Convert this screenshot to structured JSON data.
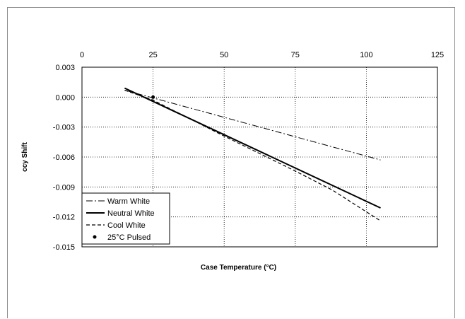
{
  "chart_data": {
    "type": "line",
    "xlabel": "Case Temperature (°C)",
    "ylabel": "ccy Shift",
    "xlim": [
      0,
      125
    ],
    "ylim": [
      -0.015,
      0.003
    ],
    "x_ticks": [
      {
        "value": 0,
        "label": "0"
      },
      {
        "value": 25,
        "label": "25"
      },
      {
        "value": 50,
        "label": "50"
      },
      {
        "value": 75,
        "label": "75"
      },
      {
        "value": 100,
        "label": "100"
      },
      {
        "value": 125,
        "label": "125"
      }
    ],
    "y_ticks": [
      {
        "value": 0.003,
        "label": "0.003"
      },
      {
        "value": 0.0,
        "label": "0.000"
      },
      {
        "value": -0.003,
        "label": "-0.003"
      },
      {
        "value": -0.006,
        "label": "-0.006"
      },
      {
        "value": -0.009,
        "label": "-0.009"
      },
      {
        "value": -0.012,
        "label": "-0.012"
      },
      {
        "value": -0.015,
        "label": "-0.015"
      }
    ],
    "x_axis_position": "top",
    "grid": true,
    "legend_position": "bottom-left",
    "series": [
      {
        "name": "Warm White",
        "style": "dash-dot",
        "color": "#000000",
        "x": [
          15,
          105
        ],
        "y": [
          0.0007,
          -0.0063
        ]
      },
      {
        "name": "Neutral White",
        "style": "solid",
        "color": "#000000",
        "x": [
          15,
          105
        ],
        "y": [
          0.0009,
          -0.0111
        ]
      },
      {
        "name": "Cool White",
        "style": "dashed",
        "color": "#000000",
        "x": [
          15,
          25,
          50,
          75,
          88,
          105
        ],
        "y": [
          0.0007,
          -0.0003,
          -0.0039,
          -0.0074,
          -0.0093,
          -0.0124
        ]
      },
      {
        "name": "25°C Pulsed",
        "style": "marker",
        "color": "#000000",
        "x": [
          25
        ],
        "y": [
          0.0
        ]
      }
    ]
  }
}
